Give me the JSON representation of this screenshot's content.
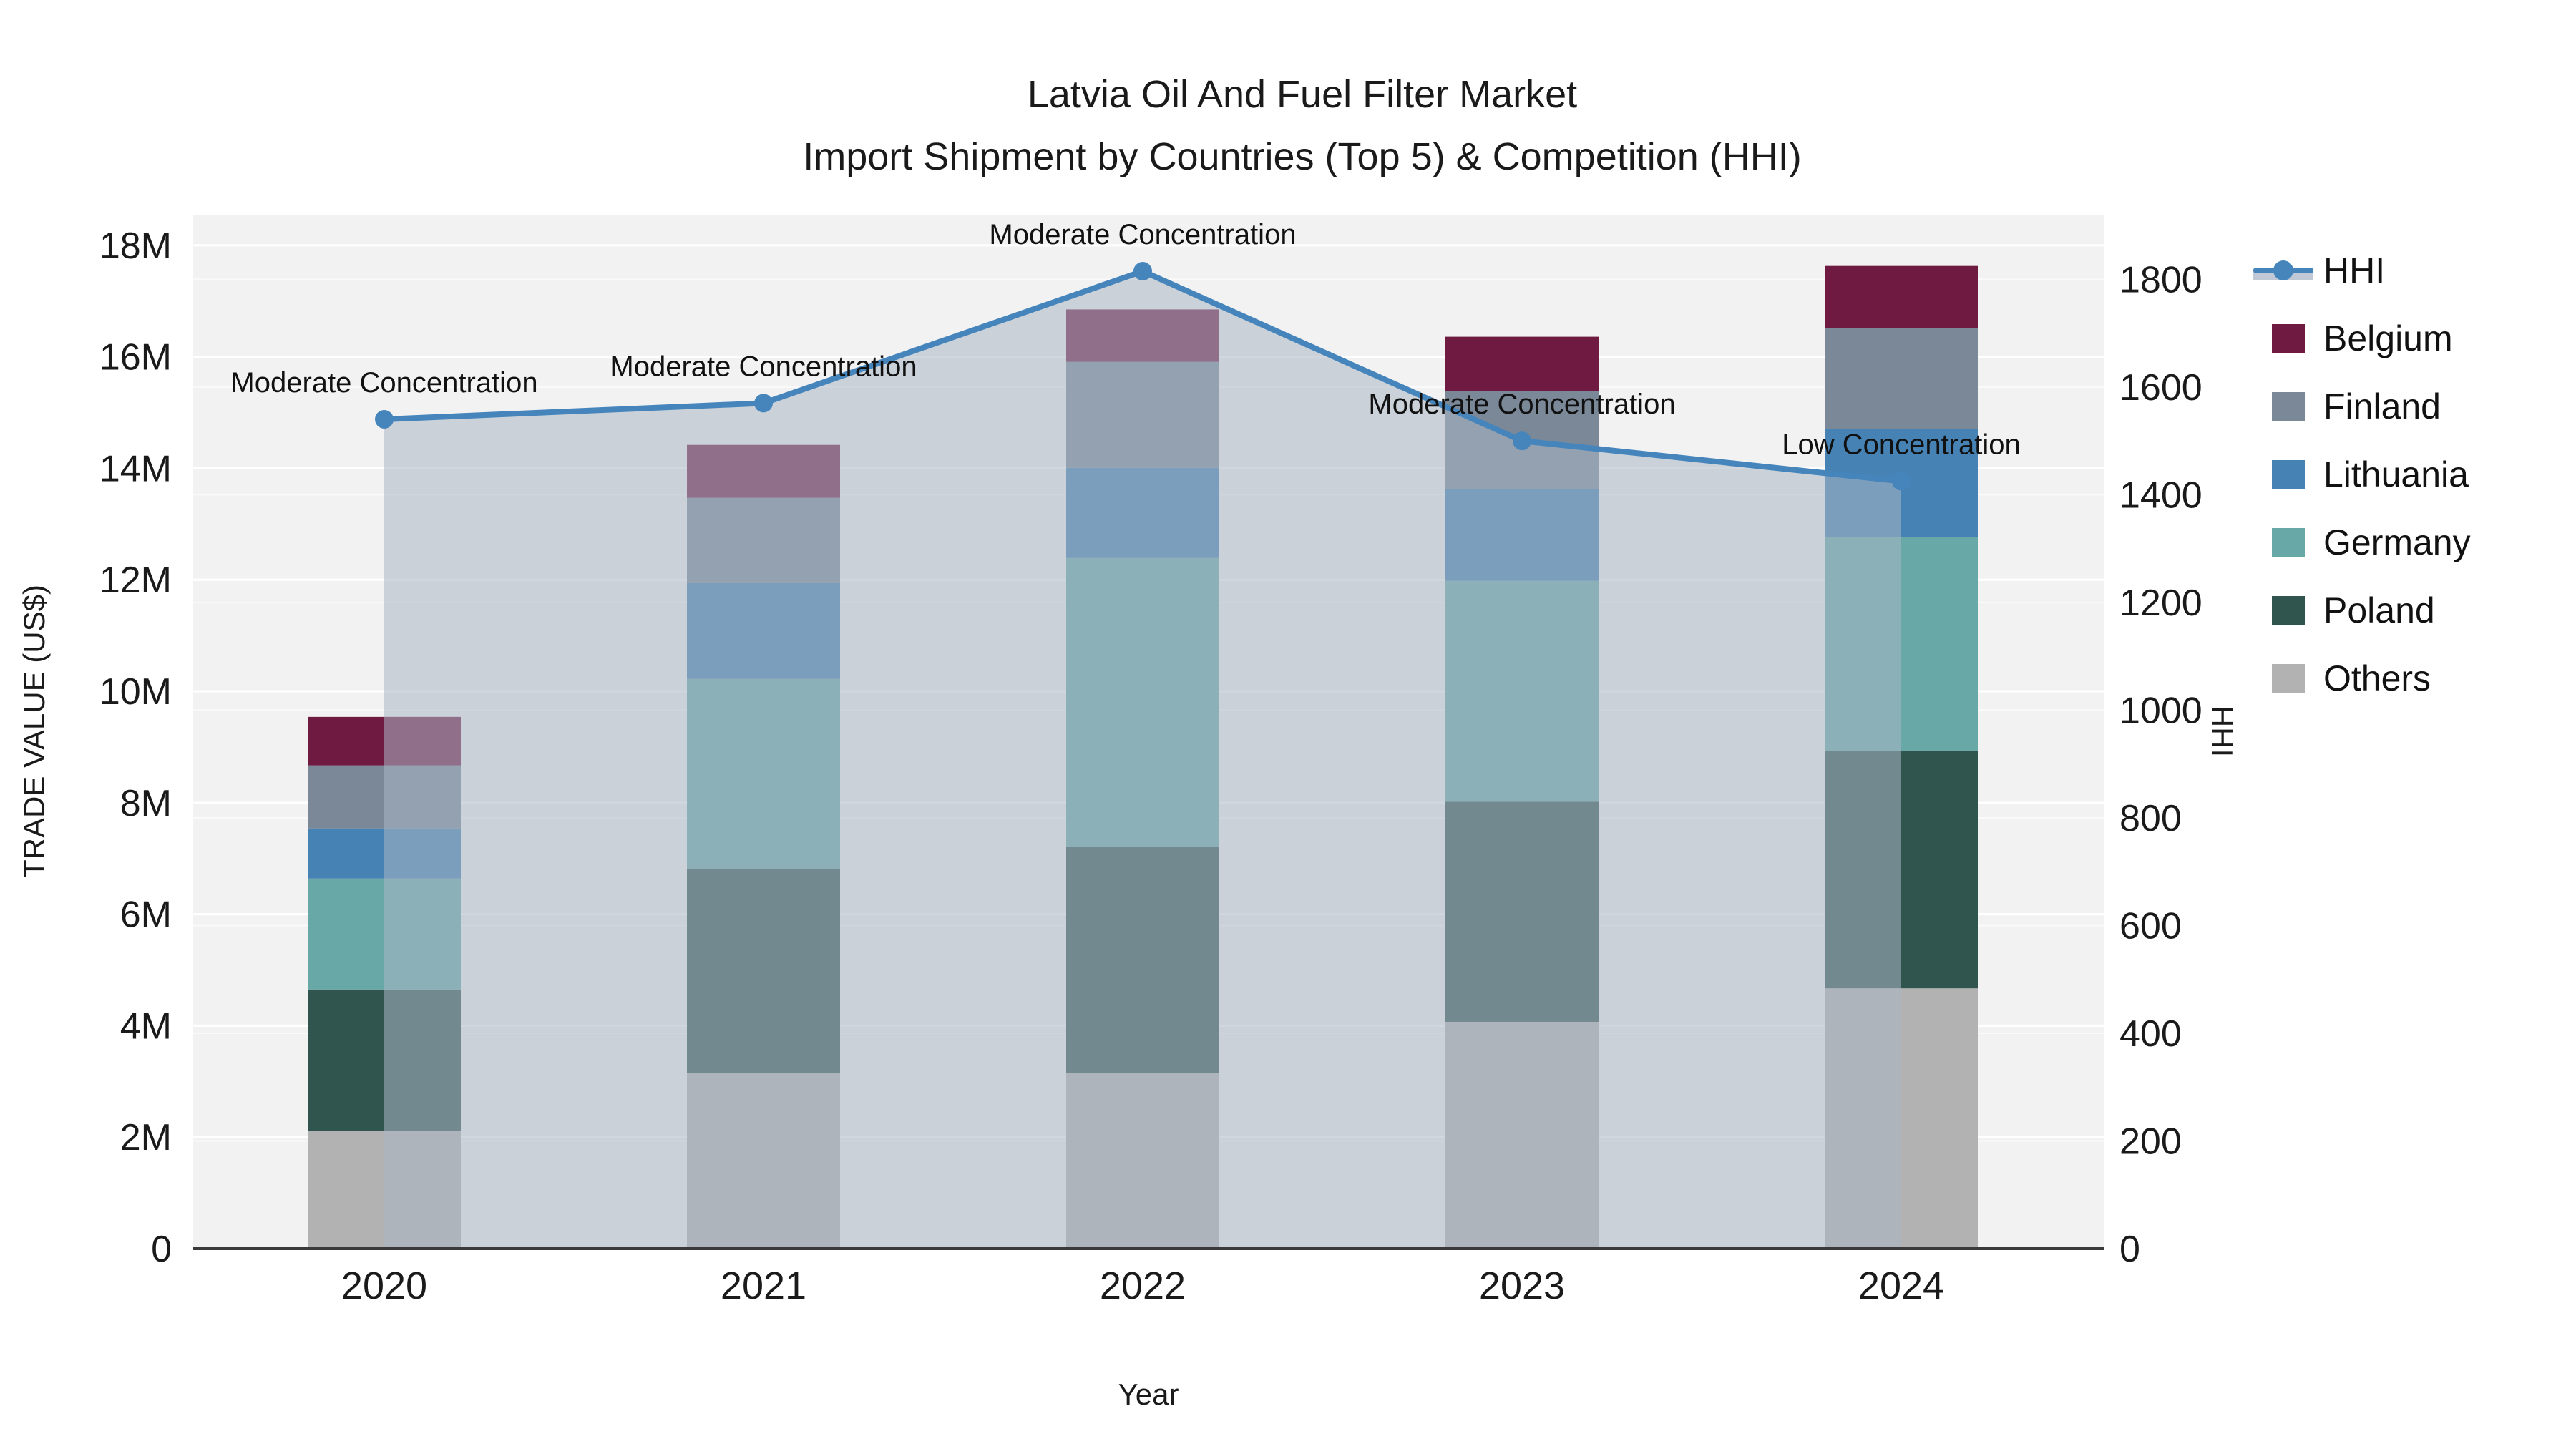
{
  "title": {
    "line1": "Latvia Oil And Fuel Filter Market",
    "line2": "Import Shipment by Countries (Top 5) & Competition (HHI)"
  },
  "axes": {
    "y_left": {
      "title": "TRADE VALUE (US$)",
      "tick_labels": [
        "0",
        "2M",
        "4M",
        "6M",
        "8M",
        "10M",
        "12M",
        "14M",
        "16M",
        "18M"
      ],
      "tick_values": [
        0,
        2,
        4,
        6,
        8,
        10,
        12,
        14,
        16,
        18
      ],
      "max_value": 18.55
    },
    "y_right": {
      "title": "HHI",
      "tick_labels": [
        "0",
        "200",
        "400",
        "600",
        "800",
        "1000",
        "1200",
        "1400",
        "1600",
        "1800"
      ],
      "tick_values": [
        0,
        200,
        400,
        600,
        800,
        1000,
        1200,
        1400,
        1600,
        1800
      ],
      "max_value": 1920
    },
    "x": {
      "title": "Year",
      "tick_labels": [
        "2020",
        "2021",
        "2022",
        "2023",
        "2024"
      ]
    }
  },
  "legend": {
    "items": [
      {
        "label": "HHI",
        "type": "line"
      },
      {
        "label": "Belgium",
        "type": "swatch"
      },
      {
        "label": "Finland",
        "type": "swatch"
      },
      {
        "label": "Lithuania",
        "type": "swatch"
      },
      {
        "label": "Germany",
        "type": "swatch"
      },
      {
        "label": "Poland",
        "type": "swatch"
      },
      {
        "label": "Others",
        "type": "swatch"
      }
    ]
  },
  "colors": {
    "Belgium": "#6f1a40",
    "Finland": "#7b8898",
    "Lithuania": "#4682b4",
    "Germany": "#68a8a6",
    "Poland": "#30544e",
    "Others": "#b2b2b2",
    "hhi_line": "#4685bc",
    "hhi_area": "rgba(170,182,197,0.55)",
    "plot_background": "#f2f2f2",
    "gridline_major": "#ffffff",
    "gridline_minor": "#fafafa",
    "axis_line": "#3a3a3a",
    "text": "#1a1a1a"
  },
  "chart_data": {
    "type": "bar",
    "subtype": "stacked-bars-with-line",
    "unit": "US$ millions (left axis), HHI index (right axis)",
    "categories": [
      "2020",
      "2021",
      "2022",
      "2023",
      "2024"
    ],
    "series": [
      {
        "name": "Others",
        "values": [
          2.11,
          3.15,
          3.15,
          4.07,
          4.67
        ]
      },
      {
        "name": "Poland",
        "values": [
          2.54,
          3.67,
          4.06,
          3.95,
          4.26
        ]
      },
      {
        "name": "Germany",
        "values": [
          1.99,
          3.4,
          5.18,
          3.96,
          3.84
        ]
      },
      {
        "name": "Lithuania",
        "values": [
          0.9,
          1.72,
          1.62,
          1.65,
          1.93
        ]
      },
      {
        "name": "Finland",
        "values": [
          1.13,
          1.53,
          1.9,
          1.75,
          1.81
        ]
      },
      {
        "name": "Belgium",
        "values": [
          0.87,
          0.95,
          0.94,
          0.98,
          1.12
        ]
      }
    ],
    "stack_totals": [
      9.54,
      14.42,
      16.85,
      16.36,
      17.63
    ],
    "line_series": {
      "name": "HHI",
      "axis": "right",
      "values": [
        1540,
        1570,
        1815,
        1500,
        1425
      ]
    },
    "annotations": [
      "Moderate Concentration",
      "Moderate Concentration",
      "Moderate Concentration",
      "Moderate Concentration",
      "Low Concentration"
    ],
    "title": "Latvia Oil And Fuel Filter Market — Import Shipment by Countries (Top 5) & Competition (HHI)",
    "xlabel": "Year",
    "ylabel_left": "TRADE VALUE (US$)",
    "ylabel_right": "HHI",
    "ylim_left": [
      0,
      18.55
    ],
    "ylim_right": [
      0,
      1920
    ],
    "grid": true,
    "legend_position": "right"
  }
}
